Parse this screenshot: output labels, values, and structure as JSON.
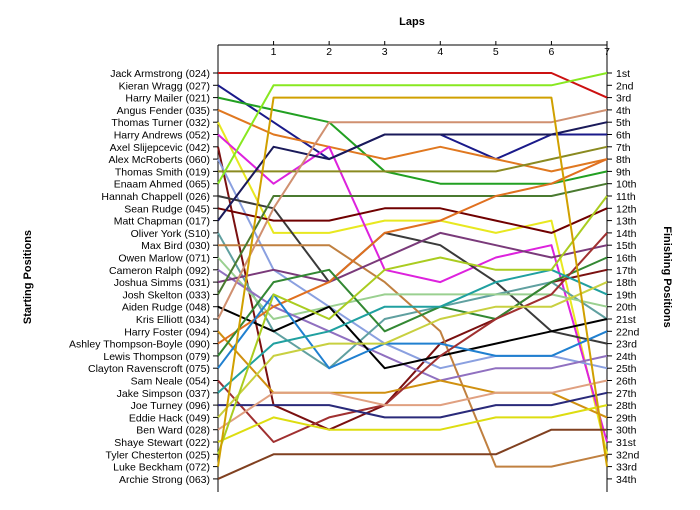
{
  "chart_data": {
    "type": "line",
    "subtype": "position-chart",
    "title": "Laps",
    "xlabel": "Laps",
    "ylabel_left": "Starting Positions",
    "ylabel_right": "Finishing Positions",
    "x_ticks": [
      "1",
      "2",
      "3",
      "4",
      "5",
      "6",
      "7"
    ],
    "finishing_labels": [
      "1st",
      "2nd",
      "3rd",
      "4th",
      "5th",
      "6th",
      "7th",
      "8th",
      "9th",
      "10th",
      "11th",
      "12th",
      "13th",
      "14th",
      "15th",
      "16th",
      "17th",
      "18th",
      "19th",
      "20th",
      "21st",
      "22nd",
      "23rd",
      "24th",
      "25th",
      "26th",
      "27th",
      "28th",
      "29th",
      "30th",
      "31st",
      "32nd",
      "33rd",
      "34th"
    ],
    "series": [
      {
        "name": "Jack Armstrong (024)",
        "color": "#cc1111",
        "positions": [
          1,
          1,
          1,
          1,
          1,
          1,
          1,
          3
        ]
      },
      {
        "name": "Kieran Wragg (027)",
        "color": "#1a1a8a",
        "positions": [
          2,
          5,
          8,
          6,
          6,
          8,
          6,
          6
        ]
      },
      {
        "name": "Harry Mailer (021)",
        "color": "#22a022",
        "positions": [
          3,
          4,
          5,
          9,
          10,
          10,
          10,
          9
        ]
      },
      {
        "name": "Angus Fender (035)",
        "color": "#e07820",
        "positions": [
          4,
          6,
          7,
          8,
          7,
          8,
          9,
          8
        ]
      },
      {
        "name": "Thomas Turner (032)",
        "color": "#e8e820",
        "positions": [
          5,
          14,
          14,
          13,
          13,
          14,
          13,
          32
        ]
      },
      {
        "name": "Harry Andrews (052)",
        "color": "#dd22dd",
        "positions": [
          6,
          10,
          7,
          17,
          18,
          16,
          15,
          31
        ]
      },
      {
        "name": "Axel Slijepcevic (042)",
        "color": "#7a1010",
        "positions": [
          7,
          28,
          30,
          28,
          23,
          21,
          18,
          17
        ]
      },
      {
        "name": "Alex McRoberts (060)",
        "color": "#8aa0e0",
        "positions": [
          8,
          17,
          20,
          23,
          25,
          24,
          24,
          25
        ]
      },
      {
        "name": "Thomas Smith (019)",
        "color": "#8a8a20",
        "positions": [
          9,
          9,
          9,
          9,
          9,
          9,
          8,
          7
        ]
      },
      {
        "name": "Enaam Ahmed (065)",
        "color": "#88e820",
        "positions": [
          10,
          2,
          2,
          2,
          2,
          2,
          2,
          1
        ]
      },
      {
        "name": "Hannah Chappell (026)",
        "color": "#3a3a3a",
        "positions": [
          11,
          12,
          18,
          14,
          15,
          18,
          22,
          23
        ]
      },
      {
        "name": "Sean Rudge (045)",
        "color": "#700000",
        "positions": [
          12,
          13,
          13,
          12,
          12,
          13,
          14,
          12
        ]
      },
      {
        "name": "Matt Chapman (017)",
        "color": "#1a1a5a",
        "positions": [
          13,
          7,
          8,
          6,
          6,
          6,
          6,
          5
        ]
      },
      {
        "name": "Oliver York (S10)",
        "color": "#60a0a0",
        "positions": [
          14,
          22,
          25,
          21,
          20,
          19,
          18,
          21
        ]
      },
      {
        "name": "Max Bird (030)",
        "color": "#c08040",
        "positions": [
          15,
          15,
          15,
          18,
          22,
          33,
          33,
          32
        ]
      },
      {
        "name": "Owen Marlow (071)",
        "color": "#9ad090",
        "positions": [
          16,
          21,
          20,
          19,
          19,
          19,
          19,
          20
        ]
      },
      {
        "name": "Cameron Ralph (092)",
        "color": "#9070c0",
        "positions": [
          17,
          20,
          22,
          24,
          26,
          25,
          25,
          24
        ]
      },
      {
        "name": "Joshua Simms (031)",
        "color": "#7a3a7a",
        "positions": [
          18,
          17,
          18,
          16,
          14,
          15,
          16,
          15
        ]
      },
      {
        "name": "Josh Skelton (033)",
        "color": "#4a7a30",
        "positions": [
          19,
          11,
          11,
          11,
          11,
          11,
          11,
          10
        ]
      },
      {
        "name": "Aiden Rudge (048)",
        "color": "#000000",
        "positions": [
          20,
          22,
          20,
          25,
          24,
          23,
          22,
          21
        ]
      },
      {
        "name": "Kris Elliott (034)",
        "color": "#d09070",
        "positions": [
          21,
          12,
          5,
          5,
          5,
          5,
          5,
          4
        ]
      },
      {
        "name": "Harry Foster (094)",
        "color": "#d09010",
        "positions": [
          22,
          27,
          27,
          27,
          26,
          27,
          27,
          29
        ]
      },
      {
        "name": "Ashley Thompson-Boyle (090)",
        "color": "#e07020",
        "positions": [
          23,
          20,
          18,
          14,
          13,
          11,
          10,
          8
        ]
      },
      {
        "name": "Lewis Thompson (079)",
        "color": "#338833",
        "positions": [
          24,
          18,
          17,
          22,
          20,
          21,
          18,
          16
        ]
      },
      {
        "name": "Clayton Ravenscroft (075)",
        "color": "#2080d0",
        "positions": [
          25,
          19,
          25,
          23,
          23,
          24,
          24,
          22
        ]
      },
      {
        "name": "Sam Neale (054)",
        "color": "#a03030",
        "positions": [
          26,
          31,
          29,
          28,
          24,
          21,
          19,
          14
        ]
      },
      {
        "name": "Jake Simpson (037)",
        "color": "#20a0a0",
        "positions": [
          27,
          23,
          22,
          20,
          20,
          18,
          17,
          19
        ]
      },
      {
        "name": "Joe Turney (096)",
        "color": "#2a2a7a",
        "positions": [
          28,
          28,
          28,
          29,
          29,
          28,
          28,
          27
        ]
      },
      {
        "name": "Eddie Hack (049)",
        "color": "#c8d040",
        "positions": [
          29,
          24,
          23,
          23,
          21,
          20,
          20,
          18
        ]
      },
      {
        "name": "Ben Ward (028)",
        "color": "#e0a080",
        "positions": [
          30,
          27,
          27,
          28,
          28,
          27,
          27,
          26
        ]
      },
      {
        "name": "Shaye Stewart (022)",
        "color": "#dddd10",
        "positions": [
          31,
          29,
          30,
          30,
          30,
          29,
          29,
          28
        ]
      },
      {
        "name": "Tyler Chesterton (025)",
        "color": "#aacc20",
        "positions": [
          32,
          19,
          21,
          17,
          16,
          17,
          17,
          11
        ]
      },
      {
        "name": "Luke Beckham (072)",
        "color": "#d0a000",
        "positions": [
          33,
          3,
          3,
          3,
          3,
          3,
          3,
          33
        ]
      },
      {
        "name": "Archie Strong (063)",
        "color": "#804020",
        "positions": [
          34,
          32,
          32,
          32,
          32,
          32,
          30,
          30
        ]
      }
    ],
    "grid": false,
    "legend": "none"
  }
}
